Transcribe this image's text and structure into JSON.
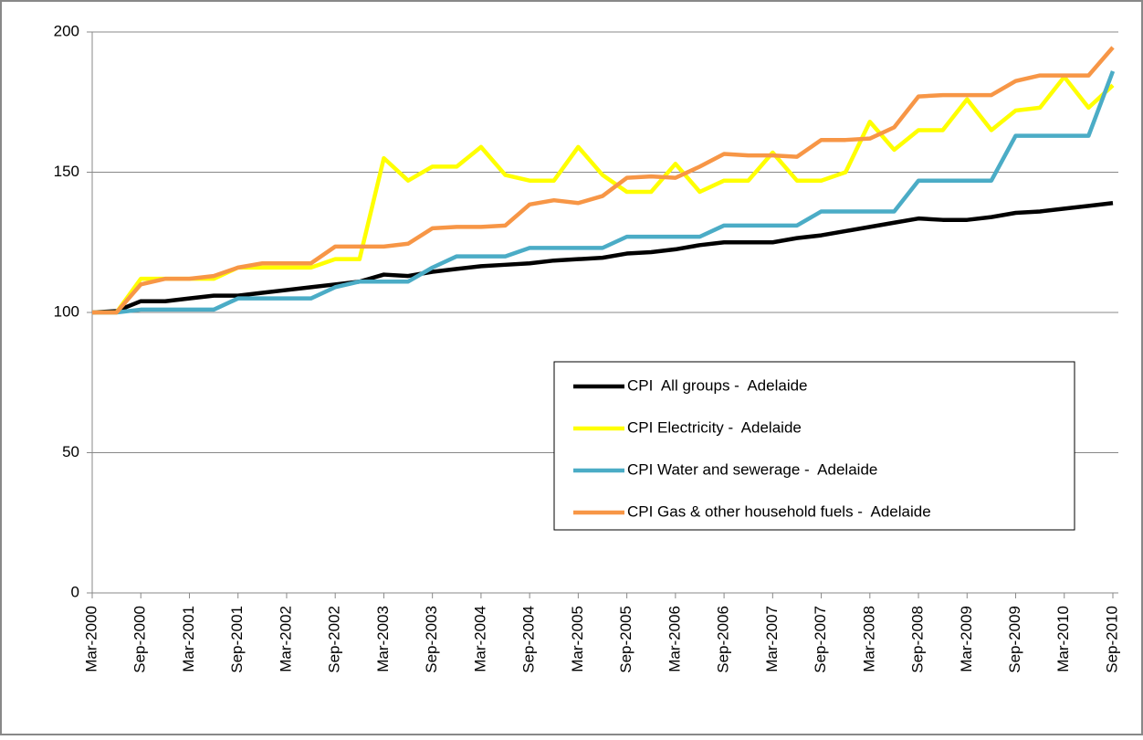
{
  "chart_data": {
    "type": "line",
    "categories": [
      "Mar-2000",
      null,
      "Sep-2000",
      null,
      "Mar-2001",
      null,
      "Sep-2001",
      null,
      "Mar-2002",
      null,
      "Sep-2002",
      null,
      "Mar-2003",
      null,
      "Sep-2003",
      null,
      "Mar-2004",
      null,
      "Sep-2004",
      null,
      "Mar-2005",
      null,
      "Sep-2005",
      null,
      "Mar-2006",
      null,
      "Sep-2006",
      null,
      "Mar-2007",
      null,
      "Sep-2007",
      null,
      "Mar-2008",
      null,
      "Sep-2008",
      null,
      "Mar-2009",
      null,
      "Sep-2009",
      null,
      "Mar-2010",
      null,
      "Sep-2010"
    ],
    "series": [
      {
        "name": "CPI  All groups -  Adelaide",
        "color": "#000000",
        "values": [
          100,
          100.5,
          104,
          104,
          105,
          106,
          106,
          107,
          108,
          109,
          110,
          111,
          113.5,
          113,
          114.5,
          115.5,
          116.5,
          117,
          117.5,
          118.5,
          119,
          119.5,
          121,
          121.5,
          122.5,
          124,
          125,
          125,
          125,
          126.5,
          127.5,
          129,
          130.5,
          132,
          133.5,
          133,
          133,
          134,
          135.5,
          136,
          137,
          138,
          139
        ]
      },
      {
        "name": "CPI Electricity -  Adelaide",
        "color": "#ffff00",
        "values": [
          100,
          100,
          112,
          112,
          112,
          112,
          116,
          116,
          116,
          116,
          119,
          119,
          155,
          147,
          152,
          152,
          159,
          149,
          147,
          147,
          159,
          149,
          143,
          143,
          153,
          143,
          147,
          147,
          157,
          147,
          147,
          150,
          168,
          158,
          165,
          165,
          176,
          165,
          172,
          173,
          184,
          173,
          181
        ]
      },
      {
        "name": "CPI Water and sewerage -  Adelaide",
        "color": "#4bacc6",
        "values": [
          100,
          100,
          101,
          101,
          101,
          101,
          105,
          105,
          105,
          105,
          109,
          111,
          111,
          111,
          116,
          120,
          120,
          120,
          123,
          123,
          123,
          123,
          127,
          127,
          127,
          127,
          131,
          131,
          131,
          131,
          136,
          136,
          136,
          136,
          147,
          147,
          147,
          147,
          163,
          163,
          163,
          163,
          186
        ]
      },
      {
        "name": "CPI Gas & other household fuels -  Adelaide",
        "color": "#f79646",
        "values": [
          100,
          100,
          110,
          112,
          112,
          113,
          116,
          117.5,
          117.5,
          117.5,
          123.5,
          123.5,
          123.5,
          124.5,
          130,
          130.5,
          130.5,
          131,
          138.5,
          140,
          139,
          141.5,
          148,
          148.5,
          148,
          152,
          156.5,
          156,
          156,
          155.5,
          161.5,
          161.5,
          162,
          166,
          177,
          177.5,
          177.5,
          177.5,
          182.5,
          184.5,
          184.5,
          184.5,
          194.5
        ]
      }
    ],
    "ylim": [
      0,
      200
    ],
    "yticks": [
      0,
      50,
      100,
      150,
      200
    ],
    "grid": true
  }
}
